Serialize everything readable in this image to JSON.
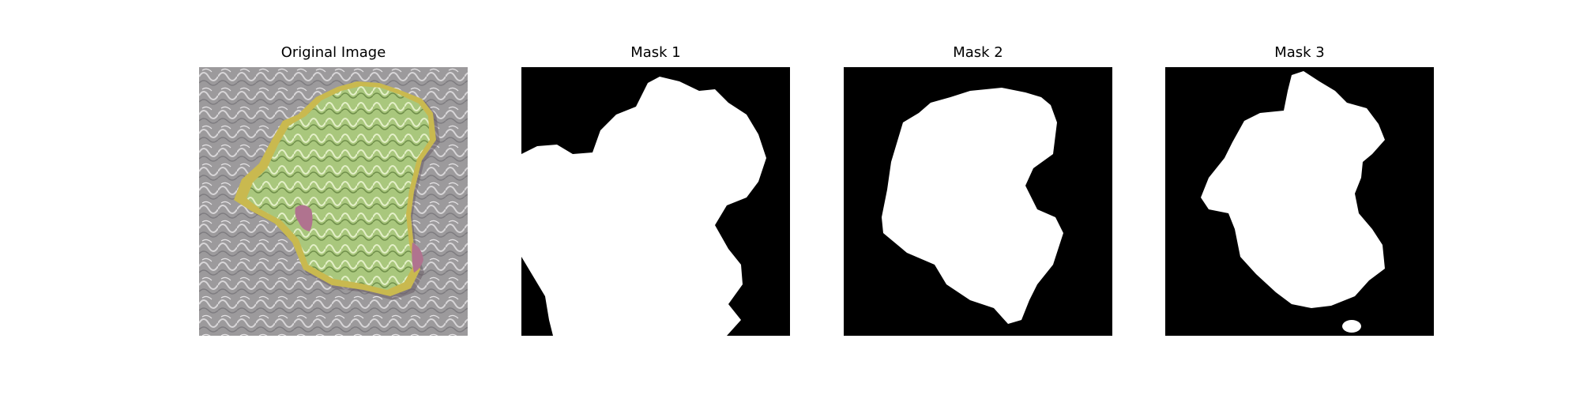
{
  "panels": [
    {
      "title": "Original Image",
      "kind": "photo"
    },
    {
      "title": "Mask 1",
      "kind": "binary-mask"
    },
    {
      "title": "Mask 2",
      "kind": "binary-mask"
    },
    {
      "title": "Mask 3",
      "kind": "binary-mask"
    }
  ],
  "colors": {
    "mask_background": "#000000",
    "mask_foreground": "#ffffff",
    "photo_background": "#9c9a9c",
    "blob_green": "#a9c77d",
    "blob_yellow": "#c9b94f",
    "blob_pink": "#b0738f"
  }
}
